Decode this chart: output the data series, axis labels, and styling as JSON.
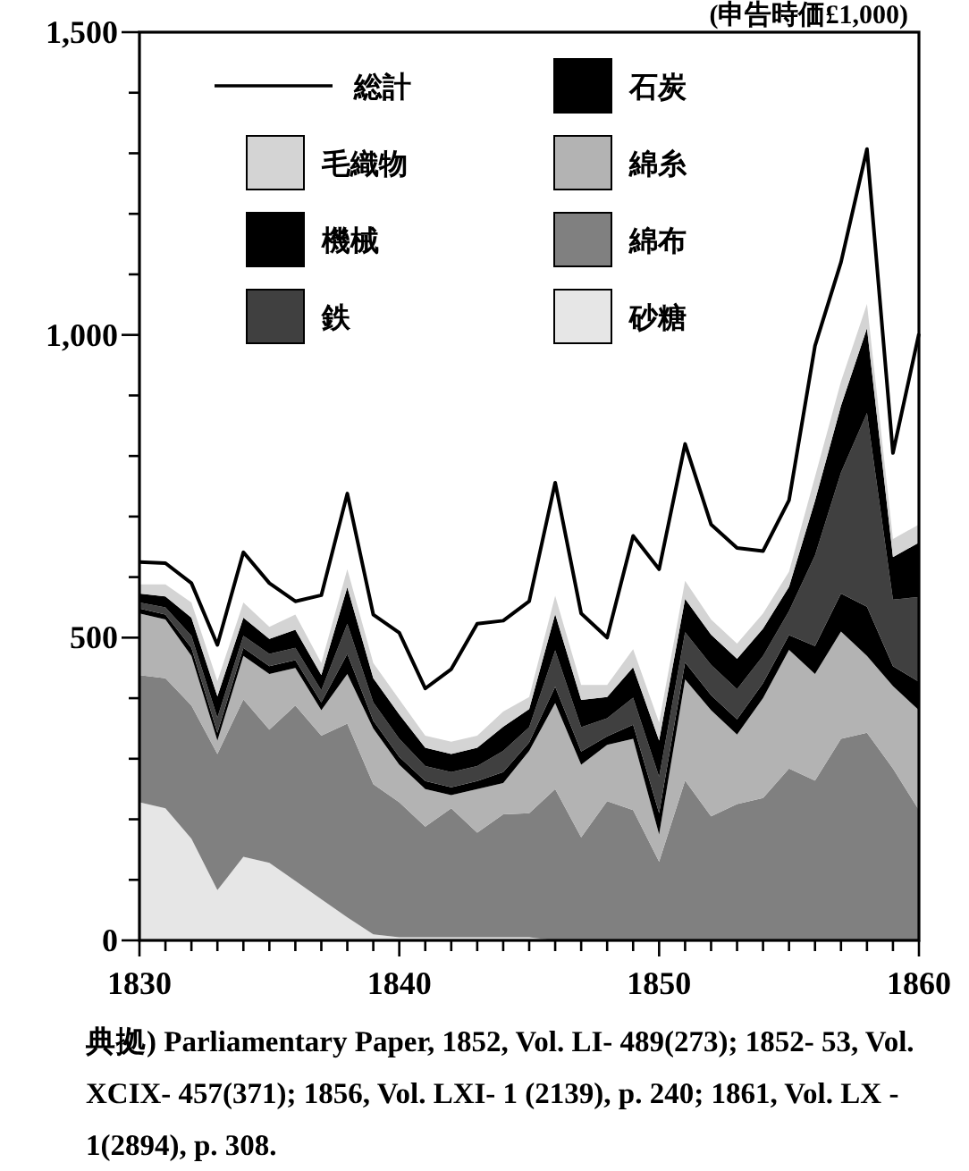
{
  "chart_data": {
    "type": "area",
    "stacked": true,
    "ylabel": "(申告時価£1,000)",
    "x": [
      1830,
      1831,
      1832,
      1833,
      1834,
      1835,
      1836,
      1837,
      1838,
      1839,
      1840,
      1841,
      1842,
      1843,
      1844,
      1845,
      1846,
      1847,
      1848,
      1849,
      1850,
      1851,
      1852,
      1853,
      1854,
      1855,
      1856,
      1857,
      1858,
      1859,
      1860
    ],
    "series": [
      {
        "name": "砂糖",
        "color": "#e6e6e6",
        "values": [
          228,
          218,
          168,
          83,
          138,
          128,
          98,
          68,
          38,
          10,
          5,
          5,
          5,
          5,
          5,
          5,
          0,
          0,
          0,
          0,
          0,
          0,
          0,
          0,
          0,
          0,
          0,
          0,
          0,
          0,
          0
        ]
      },
      {
        "name": "綿布",
        "color": "#808080",
        "values": [
          210,
          215,
          220,
          225,
          260,
          220,
          290,
          270,
          320,
          248,
          223,
          183,
          213,
          173,
          203,
          205,
          250,
          170,
          230,
          215,
          130,
          264,
          205,
          225,
          235,
          284,
          264,
          333,
          343,
          284,
          215
        ]
      },
      {
        "name": "綿糸",
        "color": "#b3b3b3",
        "values": [
          102,
          97,
          82,
          22,
          72,
          92,
          62,
          42,
          82,
          92,
          62,
          62,
          22,
          72,
          52,
          103,
          142,
          120,
          93,
          118,
          45,
          167,
          175,
          115,
          165,
          196,
          176,
          177,
          127,
          136,
          165
        ]
      },
      {
        "name": "石炭",
        "color": "#000000",
        "values": [
          8,
          8,
          13,
          13,
          13,
          13,
          13,
          13,
          33,
          13,
          13,
          13,
          13,
          13,
          18,
          14,
          27,
          22,
          14,
          23,
          35,
          28,
          25,
          25,
          25,
          24,
          46,
          63,
          81,
          33,
          47
        ]
      },
      {
        "name": "鉄",
        "color": "#404040",
        "values": [
          10,
          12,
          20,
          25,
          20,
          20,
          20,
          20,
          50,
          30,
          30,
          25,
          25,
          25,
          35,
          25,
          60,
          40,
          30,
          45,
          60,
          50,
          50,
          50,
          45,
          40,
          150,
          200,
          320,
          110,
          140
        ]
      },
      {
        "name": "機械",
        "color": "#000000",
        "values": [
          15,
          18,
          30,
          35,
          30,
          25,
          30,
          25,
          60,
          40,
          40,
          30,
          30,
          30,
          40,
          30,
          60,
          45,
          35,
          50,
          60,
          55,
          50,
          50,
          45,
          40,
          90,
          110,
          140,
          70,
          90
        ]
      },
      {
        "name": "毛織物",
        "color": "#d4d4d4",
        "values": [
          15,
          20,
          25,
          25,
          25,
          20,
          25,
          20,
          30,
          25,
          25,
          20,
          20,
          20,
          25,
          20,
          30,
          25,
          20,
          30,
          30,
          30,
          25,
          25,
          25,
          25,
          40,
          40,
          40,
          30,
          30
        ]
      },
      {
        "name": "総計",
        "type": "line",
        "color": "#000000",
        "values": [
          625,
          623,
          590,
          488,
          641,
          590,
          560,
          570,
          738,
          538,
          508,
          416,
          448,
          523,
          528,
          560,
          756,
          540,
          500,
          668,
          613,
          820,
          687,
          648,
          643,
          727,
          982,
          1120,
          1307,
          805,
          1002
        ]
      }
    ],
    "xlim": [
      1830,
      1860
    ],
    "xticks": [
      1830,
      {
        "value": 1831,
        "label": null
      },
      {
        "value": 1832,
        "label": null
      },
      {
        "value": 1833,
        "label": null
      },
      {
        "value": 1834,
        "label": null
      },
      {
        "value": 1835,
        "label": null
      },
      {
        "value": 1836,
        "label": null
      },
      {
        "value": 1837,
        "label": null
      },
      {
        "value": 1838,
        "label": null
      },
      {
        "value": 1839,
        "label": null
      },
      1840,
      {
        "value": 1841,
        "label": null
      },
      {
        "value": 1842,
        "label": null
      },
      {
        "value": 1843,
        "label": null
      },
      {
        "value": 1844,
        "label": null
      },
      {
        "value": 1845,
        "label": null
      },
      {
        "value": 1846,
        "label": null
      },
      {
        "value": 1847,
        "label": null
      },
      {
        "value": 1848,
        "label": null
      },
      {
        "value": 1849,
        "label": null
      },
      1850,
      {
        "value": 1851,
        "label": null
      },
      {
        "value": 1852,
        "label": null
      },
      {
        "value": 1853,
        "label": null
      },
      {
        "value": 1854,
        "label": null
      },
      {
        "value": 1855,
        "label": null
      },
      {
        "value": 1856,
        "label": null
      },
      {
        "value": 1857,
        "label": null
      },
      {
        "value": 1858,
        "label": null
      },
      {
        "value": 1859,
        "label": null
      },
      1860
    ],
    "ylim": [
      0,
      1500
    ],
    "yticks": [
      0,
      {
        "value": 100,
        "label": null
      },
      {
        "value": 200,
        "label": null
      },
      {
        "value": 300,
        "label": null
      },
      {
        "value": 400,
        "label": null
      },
      500,
      {
        "value": 600,
        "label": null
      },
      {
        "value": 700,
        "label": null
      },
      {
        "value": 800,
        "label": null
      },
      {
        "value": 900,
        "label": null
      },
      {
        "value": 1000,
        "label": "1,000"
      },
      {
        "value": 1100,
        "label": null
      },
      {
        "value": 1200,
        "label": null
      },
      {
        "value": 1300,
        "label": null
      },
      {
        "value": 1400,
        "label": null
      },
      {
        "value": 1500,
        "label": "1,500"
      }
    ],
    "grid": false,
    "legend": "top left",
    "annotations": [
      "典拠) Parliamentary Paper, 1852, Vol. LI- 489(273); 1852- 53, Vol. XCIX- 457(371); 1856, Vol. LXI- 1 (2139), p. 240; 1861, Vol. LX - 1(2894), p. 308."
    ]
  }
}
